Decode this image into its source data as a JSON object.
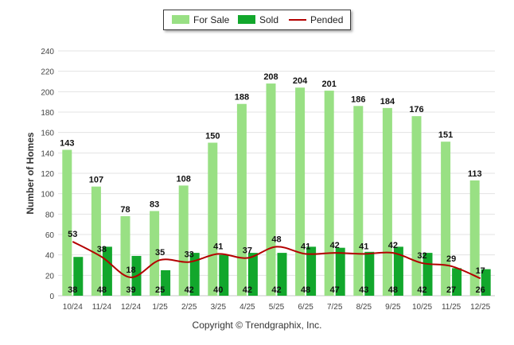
{
  "chart_data": {
    "type": "bar",
    "ylabel": "Number of Homes",
    "xlabel": "",
    "ylim": [
      0,
      240
    ],
    "yticks": [
      0,
      20,
      40,
      60,
      80,
      100,
      120,
      140,
      160,
      180,
      200,
      220,
      240
    ],
    "grid": true,
    "legend_position": "top-center",
    "categories": [
      "10/24",
      "11/24",
      "12/24",
      "1/25",
      "2/25",
      "3/25",
      "4/25",
      "5/25",
      "6/25",
      "7/25",
      "8/25",
      "9/25",
      "10/25",
      "11/25",
      "12/25"
    ],
    "series": [
      {
        "name": "For Sale",
        "type": "bar",
        "color": "#99e084",
        "values": [
          143,
          107,
          78,
          83,
          108,
          150,
          188,
          208,
          204,
          201,
          186,
          184,
          176,
          151,
          113
        ]
      },
      {
        "name": "Sold",
        "type": "bar",
        "color": "#12a72c",
        "values": [
          38,
          48,
          39,
          25,
          42,
          40,
          42,
          42,
          48,
          47,
          43,
          48,
          42,
          27,
          26
        ]
      },
      {
        "name": "Pended",
        "type": "line",
        "color": "#b40000",
        "values": [
          53,
          38,
          18,
          35,
          33,
          41,
          37,
          48,
          41,
          42,
          41,
          42,
          32,
          29,
          17
        ]
      }
    ]
  },
  "copyright": "Copyright © Trendgraphix, Inc."
}
